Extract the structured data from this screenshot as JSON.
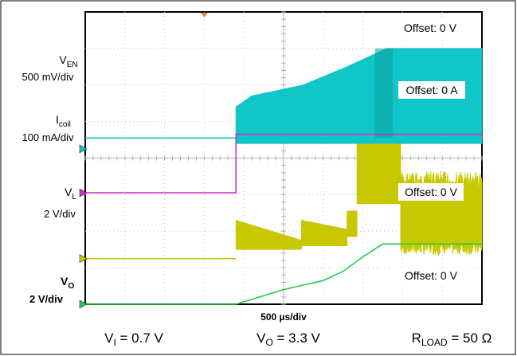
{
  "chart_data": {
    "type": "line",
    "title": "",
    "xlabel": "500 µs/div",
    "timebase": {
      "per_div": 500,
      "unit": "µs",
      "divisions": 10
    },
    "grid": true,
    "channels": [
      {
        "id": "ven",
        "name_main": "V",
        "name_sub": "EN",
        "scale": "500 mV/div",
        "offset_text": "Offset: 0 V",
        "color": "#cc33cc",
        "zero_div": 3.05,
        "x": [
          0,
          3.8,
          3.8,
          10
        ],
        "y": [
          0,
          0,
          1.6,
          1.6
        ]
      },
      {
        "id": "icoil",
        "name_main": "I",
        "name_sub": "coil",
        "scale": "100 mA/div",
        "offset_text": "Offset: 0 A",
        "color": "#c8c800",
        "zero_div": 1.25,
        "segments": [
          {
            "x0": 0.0,
            "x1": 3.8,
            "low": 0.0,
            "high": 0.0
          },
          {
            "x0": 3.8,
            "x1": 5.45,
            "low": 0.25,
            "high": 1.05,
            "ramp": [
              1.05,
              0.5
            ]
          },
          {
            "x0": 5.45,
            "x1": 6.6,
            "low": 0.35,
            "high": 1.05,
            "ramp": [
              1.05,
              0.8
            ]
          },
          {
            "x0": 6.6,
            "x1": 6.85,
            "low": 0.6,
            "high": 1.3
          },
          {
            "x0": 6.85,
            "x1": 7.95,
            "low": 1.5,
            "high": 3.45
          },
          {
            "x0": 7.95,
            "x1": 10.0,
            "low": 0.1,
            "high": 2.4,
            "noisy": true
          }
        ]
      },
      {
        "id": "vl",
        "name_main": "V",
        "name_sub": "L",
        "scale": "2 V/div",
        "offset_text": "Offset: 0 V",
        "color": "#11c6c6",
        "zero_div": 4.25,
        "baseline_div": 4.55,
        "switch_start": 3.8,
        "envelope_x": [
          3.8,
          4.2,
          5.5,
          6.6,
          7.6,
          10.0
        ],
        "envelope_y": [
          5.4,
          5.7,
          6.0,
          6.5,
          7.0,
          7.0
        ]
      },
      {
        "id": "vo",
        "name_main": "V",
        "name_sub": "O",
        "scale": "2 V/div",
        "offset_text": "Offset: 0 V",
        "color": "#22cc44",
        "bold_label": true,
        "zero_div": 0.0,
        "x": [
          0,
          3.8,
          4.1,
          5.0,
          6.0,
          6.5,
          7.0,
          7.5,
          8.0,
          10
        ],
        "y": [
          0,
          0,
          0.1,
          0.4,
          0.65,
          0.9,
          1.3,
          1.65,
          1.65,
          1.65
        ]
      }
    ]
  },
  "footer": {
    "vi_main": "V",
    "vi_sub": "I",
    "vi_value": " = 0.7 V",
    "vo_main": "V",
    "vo_sub": "O",
    "vo_value": " = 3.3 V",
    "rl_main": "R",
    "rl_sub": "LOAD",
    "rl_value": " = 50 Ω"
  }
}
